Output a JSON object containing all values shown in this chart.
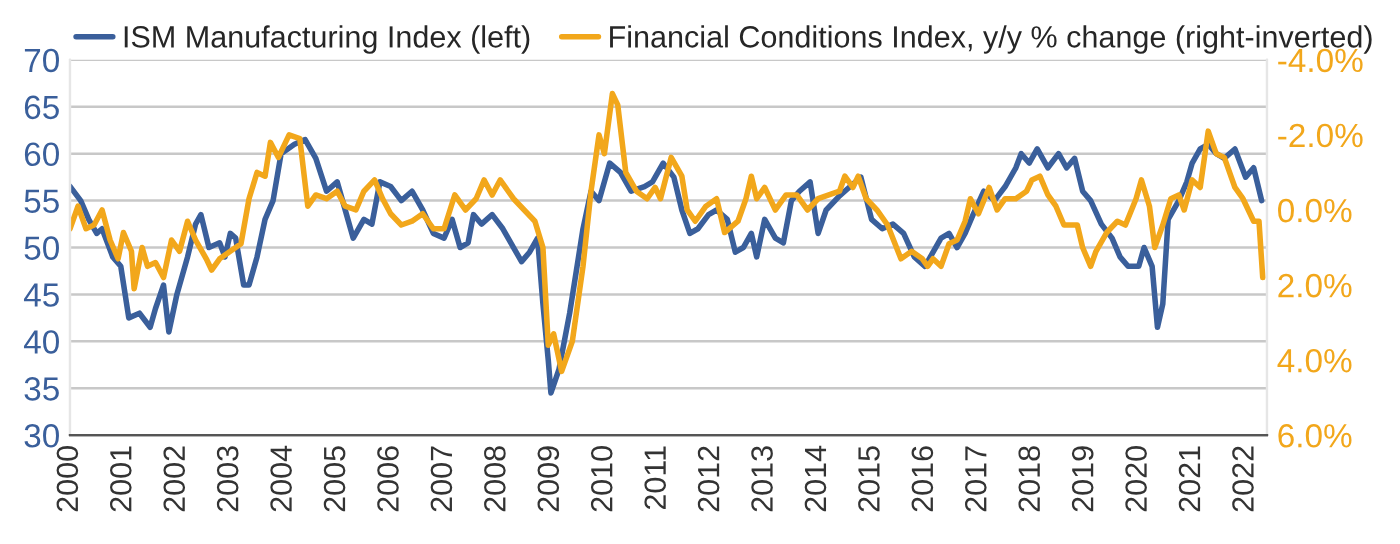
{
  "chart_data": {
    "type": "line",
    "legend": "top left",
    "grid": "y",
    "xlim": [
      2000,
      2022.4
    ],
    "xticks": [
      2000,
      2001,
      2002,
      2003,
      2004,
      2005,
      2006,
      2007,
      2008,
      2009,
      2010,
      2011,
      2012,
      2013,
      2014,
      2015,
      2016,
      2017,
      2018,
      2019,
      2020,
      2021,
      2022
    ],
    "ylim": [
      30,
      70
    ],
    "yticks": [
      30,
      35,
      40,
      45,
      50,
      55,
      60,
      65,
      70
    ],
    "y2lim": [
      6,
      -4
    ],
    "y2ticks": [
      {
        "value": -4,
        "label": "-4.0%"
      },
      {
        "value": -2,
        "label": "-2.0%"
      },
      {
        "value": 0,
        "label": "0.0%"
      },
      {
        "value": 2,
        "label": "2.0%"
      },
      {
        "value": 4,
        "label": "4.0%"
      },
      {
        "value": 6,
        "label": "6.0%"
      }
    ],
    "series": [
      {
        "name": "ISM Manufacturing Index (left)",
        "color": "#3a5f9b",
        "axis": "y",
        "x": [
          2000.0,
          2000.2,
          2000.35,
          2000.5,
          2000.6,
          2000.8,
          2000.95,
          2001.1,
          2001.3,
          2001.5,
          2001.6,
          2001.75,
          2001.85,
          2002.0,
          2002.2,
          2002.35,
          2002.45,
          2002.6,
          2002.8,
          2002.9,
          2003.0,
          2003.1,
          2003.25,
          2003.35,
          2003.5,
          2003.65,
          2003.8,
          2003.95,
          2004.2,
          2004.4,
          2004.6,
          2004.8,
          2005.0,
          2005.2,
          2005.3,
          2005.5,
          2005.65,
          2005.8,
          2006.0,
          2006.2,
          2006.4,
          2006.6,
          2006.8,
          2007.0,
          2007.15,
          2007.3,
          2007.45,
          2007.55,
          2007.7,
          2007.9,
          2008.1,
          2008.3,
          2008.45,
          2008.6,
          2008.75,
          2008.85,
          2008.95,
          2009.0,
          2009.15,
          2009.35,
          2009.6,
          2009.75,
          2009.9,
          2010.1,
          2010.3,
          2010.5,
          2010.75,
          2010.9,
          2011.1,
          2011.3,
          2011.45,
          2011.6,
          2011.75,
          2011.95,
          2012.1,
          2012.3,
          2012.45,
          2012.6,
          2012.75,
          2012.85,
          2013.0,
          2013.2,
          2013.35,
          2013.5,
          2013.65,
          2013.85,
          2014.0,
          2014.15,
          2014.4,
          2014.6,
          2014.8,
          2015.0,
          2015.2,
          2015.4,
          2015.6,
          2015.8,
          2016.0,
          2016.1,
          2016.3,
          2016.45,
          2016.6,
          2016.75,
          2016.9,
          2017.1,
          2017.3,
          2017.5,
          2017.7,
          2017.8,
          2017.95,
          2018.1,
          2018.3,
          2018.5,
          2018.65,
          2018.8,
          2018.95,
          2019.1,
          2019.3,
          2019.5,
          2019.65,
          2019.8,
          2020.0,
          2020.1,
          2020.25,
          2020.35,
          2020.45,
          2020.55,
          2020.75,
          2020.9,
          2021.0,
          2021.15,
          2021.3,
          2021.45,
          2021.6,
          2021.8,
          2022.0,
          2022.15,
          2022.3
        ],
        "values": [
          56.5,
          55,
          53,
          51.5,
          52,
          49,
          48,
          42.5,
          43,
          41.5,
          43.5,
          46,
          41,
          45,
          49,
          52.5,
          53.5,
          50,
          50.5,
          49,
          51.5,
          51,
          46,
          46,
          49,
          53,
          55,
          60,
          61,
          61.5,
          59.5,
          56,
          57,
          53,
          51,
          53,
          52.5,
          57,
          56.5,
          55,
          56,
          54,
          51.5,
          51,
          53,
          50,
          50.5,
          53.5,
          52.5,
          53.5,
          52,
          50,
          48.5,
          49.5,
          51,
          44,
          38,
          34.5,
          37,
          43,
          52,
          56,
          55,
          59,
          58,
          56,
          56.5,
          57,
          59,
          57.5,
          54,
          51.5,
          52,
          53.5,
          54,
          53,
          49.5,
          50,
          51.5,
          49,
          53,
          51,
          50.5,
          55,
          56,
          57,
          51.5,
          54,
          55.5,
          56.5,
          57.5,
          53,
          52,
          52.5,
          51.5,
          49,
          48,
          49,
          51,
          51.5,
          50,
          51.5,
          53.5,
          56,
          55,
          56.5,
          58.5,
          60,
          59,
          60.5,
          58.5,
          60,
          58.5,
          59.5,
          56,
          55,
          52.5,
          51,
          49,
          48,
          48,
          50,
          48,
          41.5,
          44,
          53,
          55,
          57,
          59,
          60.5,
          61,
          60,
          59.5,
          60.5,
          57.5,
          58.5,
          55
        ]
      },
      {
        "name": "Financial Conditions Index, y/y % change (right-inverted)",
        "color": "#f2a71b",
        "axis": "y2",
        "x": [
          2000.0,
          2000.15,
          2000.3,
          2000.45,
          2000.6,
          2000.75,
          2000.9,
          2001.0,
          2001.15,
          2001.2,
          2001.35,
          2001.45,
          2001.6,
          2001.75,
          2001.9,
          2002.05,
          2002.2,
          2002.35,
          2002.55,
          2002.65,
          2002.8,
          2003.0,
          2003.2,
          2003.35,
          2003.5,
          2003.65,
          2003.75,
          2003.9,
          2004.1,
          2004.3,
          2004.45,
          2004.6,
          2004.8,
          2005.0,
          2005.15,
          2005.35,
          2005.5,
          2005.7,
          2005.85,
          2006.0,
          2006.2,
          2006.4,
          2006.6,
          2006.8,
          2007.0,
          2007.2,
          2007.4,
          2007.6,
          2007.75,
          2007.9,
          2008.05,
          2008.15,
          2008.3,
          2008.5,
          2008.7,
          2008.85,
          2008.95,
          2009.05,
          2009.2,
          2009.4,
          2009.6,
          2009.75,
          2009.9,
          2010.0,
          2010.15,
          2010.25,
          2010.4,
          2010.6,
          2010.8,
          2010.95,
          2011.05,
          2011.25,
          2011.45,
          2011.55,
          2011.7,
          2011.9,
          2012.1,
          2012.25,
          2012.5,
          2012.65,
          2012.75,
          2012.85,
          2013.0,
          2013.2,
          2013.4,
          2013.6,
          2013.8,
          2014.0,
          2014.2,
          2014.4,
          2014.5,
          2014.65,
          2014.75,
          2014.9,
          2015.1,
          2015.3,
          2015.55,
          2015.75,
          2015.95,
          2016.05,
          2016.15,
          2016.3,
          2016.45,
          2016.6,
          2016.75,
          2016.85,
          2017.0,
          2017.2,
          2017.35,
          2017.5,
          2017.7,
          2017.9,
          2018.0,
          2018.15,
          2018.3,
          2018.45,
          2018.6,
          2018.85,
          2018.95,
          2019.1,
          2019.2,
          2019.4,
          2019.6,
          2019.75,
          2019.95,
          2020.05,
          2020.2,
          2020.3,
          2020.45,
          2020.6,
          2020.75,
          2020.85,
          2021.0,
          2021.15,
          2021.3,
          2021.45,
          2021.6,
          2021.8,
          2021.95,
          2022.05,
          2022.15,
          2022.25,
          2022.32
        ],
        "values": [
          0.5,
          -0.1,
          0.5,
          0.4,
          0.0,
          0.8,
          1.3,
          0.6,
          1.1,
          2.1,
          1.0,
          1.5,
          1.4,
          1.8,
          0.8,
          1.1,
          0.3,
          0.8,
          1.3,
          1.6,
          1.3,
          1.1,
          0.9,
          -0.3,
          -1.0,
          -0.9,
          -1.8,
          -1.4,
          -2.0,
          -1.9,
          -0.1,
          -0.4,
          -0.3,
          -0.5,
          -0.1,
          0.0,
          -0.5,
          -0.8,
          -0.3,
          0.1,
          0.4,
          0.3,
          0.1,
          0.5,
          0.5,
          -0.4,
          0.0,
          -0.3,
          -0.8,
          -0.4,
          -0.8,
          -0.6,
          -0.3,
          0.0,
          0.3,
          1.0,
          3.6,
          3.3,
          4.3,
          3.5,
          1.5,
          -0.5,
          -2.0,
          -1.5,
          -3.1,
          -2.8,
          -1.0,
          -0.5,
          -0.3,
          -0.6,
          -0.3,
          -1.4,
          -0.9,
          0.0,
          0.3,
          -0.1,
          -0.3,
          0.6,
          0.3,
          -0.3,
          -0.9,
          -0.3,
          -0.6,
          0.0,
          -0.4,
          -0.4,
          0.0,
          -0.3,
          -0.4,
          -0.5,
          -0.9,
          -0.6,
          -0.9,
          -0.3,
          0.0,
          0.4,
          1.3,
          1.1,
          1.3,
          1.5,
          1.3,
          1.5,
          0.9,
          0.8,
          0.3,
          -0.3,
          0.1,
          -0.6,
          0.0,
          -0.3,
          -0.3,
          -0.5,
          -0.8,
          -0.9,
          -0.4,
          -0.1,
          0.4,
          0.4,
          1.0,
          1.5,
          1.1,
          0.6,
          0.3,
          0.4,
          -0.3,
          -0.8,
          -0.1,
          1.0,
          0.4,
          -0.3,
          -0.4,
          0.0,
          -0.8,
          -0.6,
          -2.1,
          -1.5,
          -1.4,
          -0.6,
          -0.3,
          0.0,
          0.3,
          0.3,
          1.8
        ]
      }
    ]
  }
}
